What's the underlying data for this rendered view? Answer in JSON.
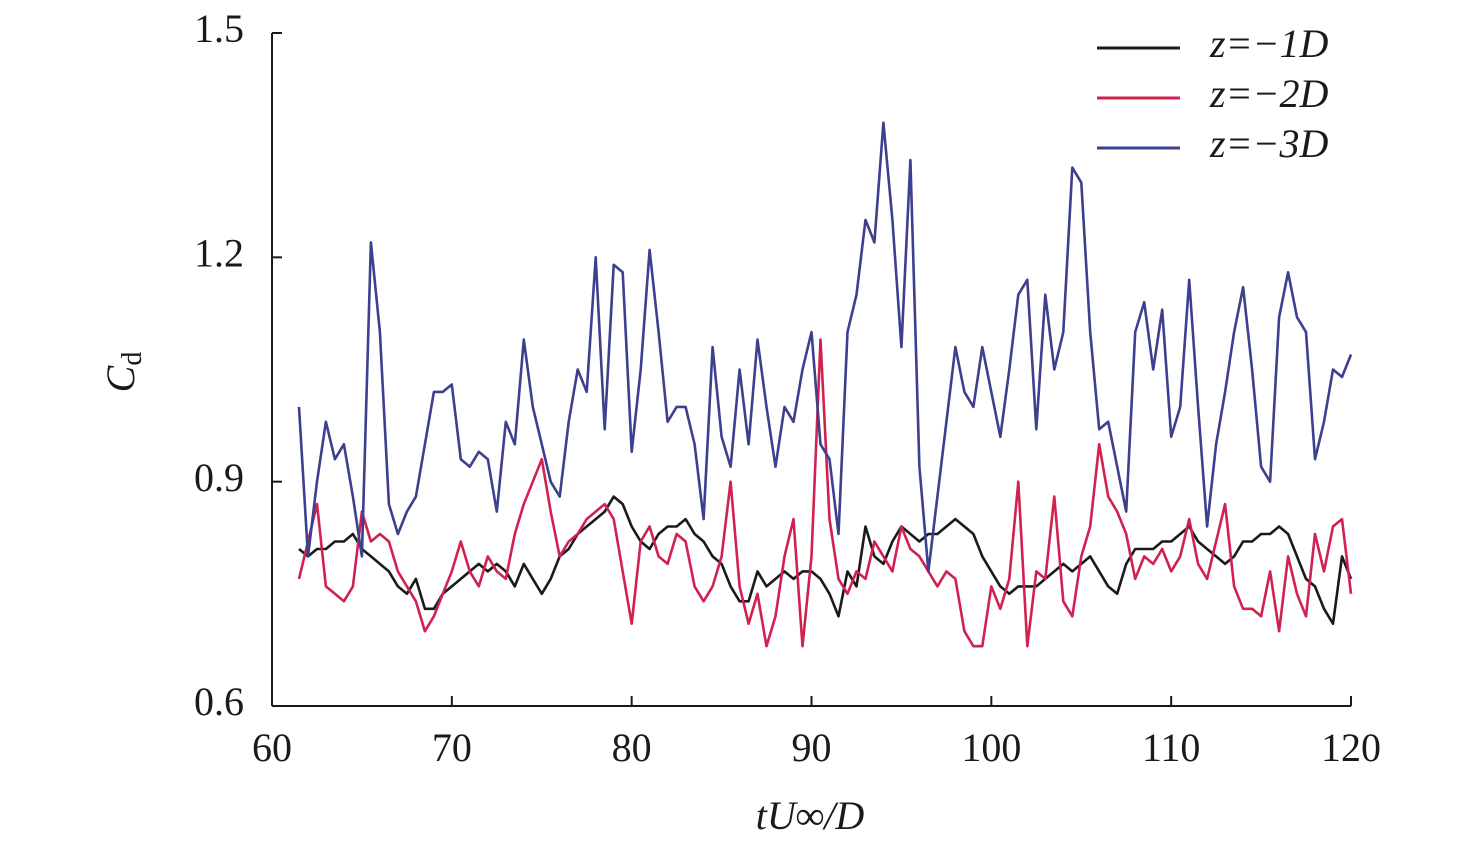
{
  "chart_data": {
    "type": "line",
    "xlabel": "tU∞/D",
    "ylabel": "C",
    "ylabel_subscript": "d",
    "xlim": [
      60,
      120
    ],
    "xticks": [
      60,
      70,
      80,
      90,
      100,
      110,
      120
    ],
    "ylim": [
      0.6,
      1.5
    ],
    "yticks": [
      0.6,
      0.9,
      1.2,
      1.5
    ],
    "legend": "upper right",
    "x": [
      61.5,
      62,
      62.5,
      63,
      63.5,
      64,
      64.5,
      65,
      65.5,
      66,
      66.5,
      67,
      67.5,
      68,
      68.5,
      69,
      69.5,
      70,
      70.5,
      71,
      71.5,
      72,
      72.5,
      73,
      73.5,
      74,
      74.5,
      75,
      75.5,
      76,
      76.5,
      77,
      77.5,
      78,
      78.5,
      79,
      79.5,
      80,
      80.5,
      81,
      81.5,
      82,
      82.5,
      83,
      83.5,
      84,
      84.5,
      85,
      85.5,
      86,
      86.5,
      87,
      87.5,
      88,
      88.5,
      89,
      89.5,
      90,
      90.5,
      91,
      91.5,
      92,
      92.5,
      93,
      93.5,
      94,
      94.5,
      95,
      95.5,
      96,
      96.5,
      97,
      97.5,
      98,
      98.5,
      99,
      99.5,
      100,
      100.5,
      101,
      101.5,
      102,
      102.5,
      103,
      103.5,
      104,
      104.5,
      105,
      105.5,
      106,
      106.5,
      107,
      107.5,
      108,
      108.5,
      109,
      109.5,
      110,
      110.5,
      111,
      111.5,
      112,
      112.5,
      113,
      113.5,
      114,
      114.5,
      115,
      115.5,
      116,
      116.5,
      117,
      117.5,
      118,
      118.5,
      119,
      119.5,
      120
    ],
    "series": [
      {
        "name": "z=−1D",
        "color": "#1a1a1a",
        "values": [
          0.81,
          0.8,
          0.81,
          0.81,
          0.82,
          0.82,
          0.83,
          0.81,
          0.8,
          0.79,
          0.78,
          0.76,
          0.75,
          0.77,
          0.73,
          0.73,
          0.75,
          0.76,
          0.77,
          0.78,
          0.79,
          0.78,
          0.79,
          0.78,
          0.76,
          0.79,
          0.77,
          0.75,
          0.77,
          0.8,
          0.81,
          0.83,
          0.84,
          0.85,
          0.86,
          0.88,
          0.87,
          0.84,
          0.82,
          0.81,
          0.83,
          0.84,
          0.84,
          0.85,
          0.83,
          0.82,
          0.8,
          0.79,
          0.76,
          0.74,
          0.74,
          0.78,
          0.76,
          0.77,
          0.78,
          0.77,
          0.78,
          0.78,
          0.77,
          0.75,
          0.72,
          0.78,
          0.76,
          0.84,
          0.8,
          0.79,
          0.82,
          0.84,
          0.83,
          0.82,
          0.83,
          0.83,
          0.84,
          0.85,
          0.84,
          0.83,
          0.8,
          0.78,
          0.76,
          0.75,
          0.76,
          0.76,
          0.76,
          0.77,
          0.78,
          0.79,
          0.78,
          0.79,
          0.8,
          0.78,
          0.76,
          0.75,
          0.79,
          0.81,
          0.81,
          0.81,
          0.82,
          0.82,
          0.83,
          0.84,
          0.82,
          0.81,
          0.8,
          0.79,
          0.8,
          0.82,
          0.82,
          0.83,
          0.83,
          0.84,
          0.83,
          0.8,
          0.77,
          0.76,
          0.73,
          0.71,
          0.8,
          0.77
        ]
      },
      {
        "name": "z=−2D",
        "color": "#d0214f",
        "values": [
          0.77,
          0.82,
          0.87,
          0.76,
          0.75,
          0.74,
          0.76,
          0.86,
          0.82,
          0.83,
          0.82,
          0.78,
          0.76,
          0.74,
          0.7,
          0.72,
          0.75,
          0.78,
          0.82,
          0.78,
          0.76,
          0.8,
          0.78,
          0.77,
          0.83,
          0.87,
          0.9,
          0.93,
          0.86,
          0.8,
          0.82,
          0.83,
          0.85,
          0.86,
          0.87,
          0.85,
          0.78,
          0.71,
          0.82,
          0.84,
          0.8,
          0.79,
          0.83,
          0.82,
          0.76,
          0.74,
          0.76,
          0.8,
          0.9,
          0.76,
          0.71,
          0.75,
          0.68,
          0.72,
          0.8,
          0.85,
          0.68,
          0.8,
          1.09,
          0.85,
          0.77,
          0.75,
          0.78,
          0.77,
          0.82,
          0.8,
          0.78,
          0.84,
          0.81,
          0.8,
          0.78,
          0.76,
          0.78,
          0.77,
          0.7,
          0.68,
          0.68,
          0.76,
          0.73,
          0.77,
          0.9,
          0.68,
          0.78,
          0.77,
          0.88,
          0.74,
          0.72,
          0.8,
          0.84,
          0.95,
          0.88,
          0.86,
          0.83,
          0.77,
          0.8,
          0.79,
          0.81,
          0.78,
          0.8,
          0.85,
          0.79,
          0.77,
          0.82,
          0.87,
          0.76,
          0.73,
          0.73,
          0.72,
          0.78,
          0.7,
          0.8,
          0.75,
          0.72,
          0.83,
          0.78,
          0.84,
          0.85,
          0.75
        ]
      },
      {
        "name": "z=−3D",
        "color": "#3d3f8f",
        "values": [
          1.0,
          0.8,
          0.9,
          0.98,
          0.93,
          0.95,
          0.88,
          0.8,
          1.22,
          1.1,
          0.87,
          0.83,
          0.86,
          0.88,
          0.95,
          1.02,
          1.02,
          1.03,
          0.93,
          0.92,
          0.94,
          0.93,
          0.86,
          0.98,
          0.95,
          1.09,
          1.0,
          0.95,
          0.9,
          0.88,
          0.98,
          1.05,
          1.02,
          1.2,
          0.97,
          1.19,
          1.18,
          0.94,
          1.05,
          1.21,
          1.1,
          0.98,
          1.0,
          1.0,
          0.95,
          0.85,
          1.08,
          0.96,
          0.92,
          1.05,
          0.95,
          1.09,
          1.0,
          0.92,
          1.0,
          0.98,
          1.05,
          1.1,
          0.95,
          0.93,
          0.83,
          1.1,
          1.15,
          1.25,
          1.22,
          1.38,
          1.25,
          1.08,
          1.33,
          0.92,
          0.78,
          0.88,
          0.98,
          1.08,
          1.02,
          1.0,
          1.08,
          1.02,
          0.96,
          1.05,
          1.15,
          1.17,
          0.97,
          1.15,
          1.05,
          1.1,
          1.32,
          1.3,
          1.1,
          0.97,
          0.98,
          0.92,
          0.86,
          1.1,
          1.14,
          1.05,
          1.13,
          0.96,
          1.0,
          1.17,
          1.0,
          0.84,
          0.95,
          1.02,
          1.1,
          1.16,
          1.05,
          0.92,
          0.9,
          1.12,
          1.18,
          1.12,
          1.1,
          0.93,
          0.98,
          1.05,
          1.04,
          1.07
        ]
      }
    ]
  }
}
